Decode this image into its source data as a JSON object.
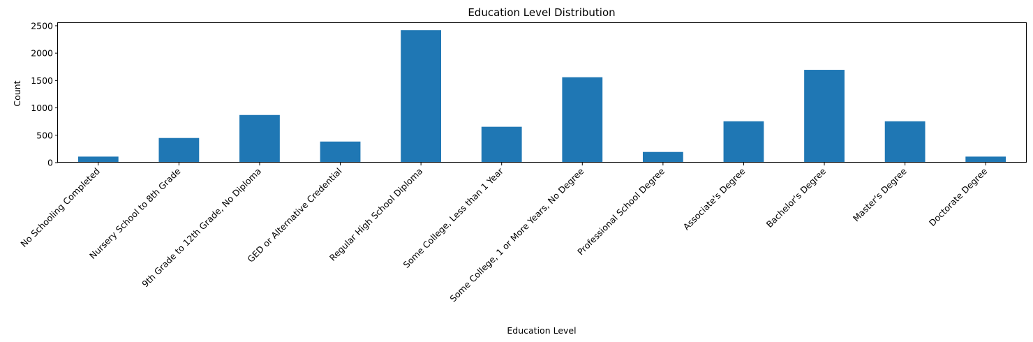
{
  "chart_data": {
    "type": "bar",
    "title": "Education Level Distribution",
    "xlabel": "Education Level",
    "ylabel": "Count",
    "categories": [
      "No Schooling Completed",
      "Nursery School to 8th Grade",
      "9th Grade to 12th Grade, No Diploma",
      "GED or Alternative Credential",
      "Regular High School Diploma",
      "Some College, Less than 1 Year",
      "Some College, 1 or More Years, No Degree",
      "Professional School Degree",
      "Associate's Degree",
      "Bachelor's Degree",
      "Master's Degree",
      "Doctorate Degree"
    ],
    "values": [
      110,
      450,
      870,
      385,
      2420,
      655,
      1560,
      195,
      755,
      1695,
      755,
      110
    ],
    "ylim": [
      0,
      2550
    ],
    "yticks": [
      0,
      500,
      1000,
      1500,
      2000,
      2500
    ],
    "grid": false,
    "bar_color": "#1f77b4"
  }
}
